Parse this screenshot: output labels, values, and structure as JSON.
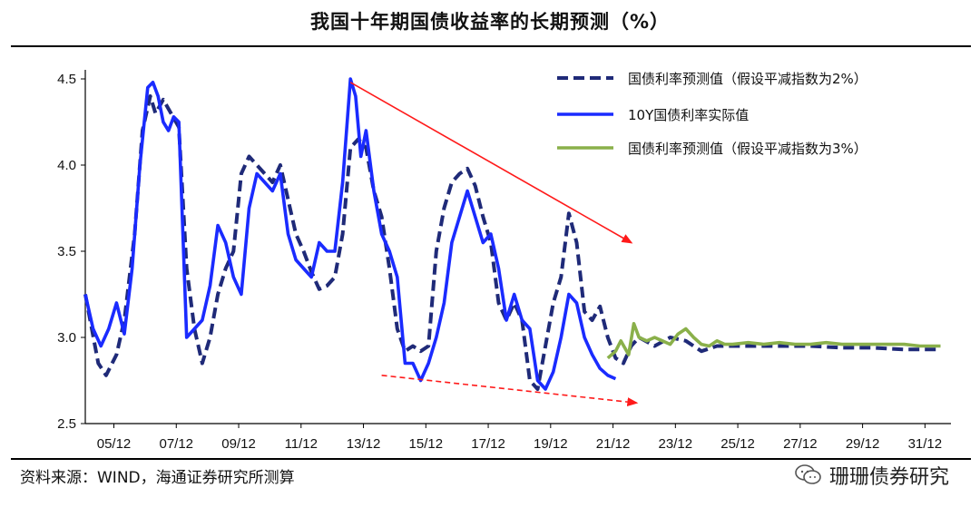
{
  "header": {
    "title": "我国十年期国债收益率的长期预测（%）"
  },
  "footer": {
    "source": "资料来源：WIND，海通证券研究所测算",
    "watermark": "珊珊债券研究"
  },
  "colors": {
    "navy": "#1f2a78",
    "blue": "#1a2bff",
    "green": "#8ab04a",
    "red": "#ff1a1a"
  },
  "chart_data": {
    "type": "line",
    "x_ticks": [
      "05/12",
      "07/12",
      "09/12",
      "11/12",
      "13/12",
      "15/12",
      "17/12",
      "19/12",
      "21/12",
      "23/12",
      "25/12",
      "27/12",
      "29/12",
      "31/12"
    ],
    "y_ticks": [
      "2.5",
      "3.0",
      "3.5",
      "4.0",
      "4.5"
    ],
    "ylim": [
      2.5,
      4.5
    ],
    "xlim": [
      "2005-01",
      "2032-10"
    ],
    "legend": {
      "placement": "top-right"
    },
    "series": [
      {
        "name": "国债利率预测值（假设平减指数为2%）",
        "style": "dashed",
        "color": "#1f2a78",
        "points": [
          [
            "2005-01",
            3.25
          ],
          [
            "2005-06",
            2.85
          ],
          [
            "2005-09",
            2.78
          ],
          [
            "2006-01",
            2.9
          ],
          [
            "2006-04",
            3.1
          ],
          [
            "2006-08",
            3.6
          ],
          [
            "2006-11",
            4.2
          ],
          [
            "2007-02",
            4.4
          ],
          [
            "2007-04",
            4.3
          ],
          [
            "2007-07",
            4.38
          ],
          [
            "2007-10",
            4.3
          ],
          [
            "2008-01",
            4.22
          ],
          [
            "2008-04",
            3.4
          ],
          [
            "2008-07",
            3.05
          ],
          [
            "2008-10",
            2.85
          ],
          [
            "2009-01",
            3.0
          ],
          [
            "2009-04",
            3.25
          ],
          [
            "2009-07",
            3.4
          ],
          [
            "2009-10",
            3.5
          ],
          [
            "2010-01",
            3.95
          ],
          [
            "2010-04",
            4.05
          ],
          [
            "2010-07",
            4.0
          ],
          [
            "2010-10",
            3.95
          ],
          [
            "2011-01",
            3.9
          ],
          [
            "2011-04",
            4.0
          ],
          [
            "2011-07",
            3.8
          ],
          [
            "2011-10",
            3.6
          ],
          [
            "2012-01",
            3.5
          ],
          [
            "2012-04",
            3.38
          ],
          [
            "2012-07",
            3.28
          ],
          [
            "2012-10",
            3.3
          ],
          [
            "2013-01",
            3.35
          ],
          [
            "2013-04",
            3.6
          ],
          [
            "2013-07",
            4.1
          ],
          [
            "2013-10",
            4.15
          ],
          [
            "2014-01",
            4.1
          ],
          [
            "2014-04",
            3.85
          ],
          [
            "2014-07",
            3.7
          ],
          [
            "2014-10",
            3.4
          ],
          [
            "2015-01",
            3.05
          ],
          [
            "2015-04",
            2.92
          ],
          [
            "2015-07",
            2.95
          ],
          [
            "2015-10",
            2.92
          ],
          [
            "2016-01",
            2.95
          ],
          [
            "2016-04",
            3.5
          ],
          [
            "2016-07",
            3.75
          ],
          [
            "2016-10",
            3.9
          ],
          [
            "2017-01",
            3.95
          ],
          [
            "2017-04",
            3.98
          ],
          [
            "2017-07",
            3.88
          ],
          [
            "2017-10",
            3.7
          ],
          [
            "2018-01",
            3.55
          ],
          [
            "2018-04",
            3.2
          ],
          [
            "2018-07",
            3.1
          ],
          [
            "2018-10",
            3.2
          ],
          [
            "2019-01",
            3.1
          ],
          [
            "2019-04",
            2.75
          ],
          [
            "2019-07",
            2.7
          ],
          [
            "2019-10",
            2.95
          ],
          [
            "2020-01",
            3.2
          ],
          [
            "2020-04",
            3.35
          ],
          [
            "2020-07",
            3.72
          ],
          [
            "2020-10",
            3.55
          ],
          [
            "2021-01",
            3.15
          ],
          [
            "2021-04",
            3.1
          ],
          [
            "2021-07",
            3.18
          ],
          [
            "2021-10",
            3.0
          ],
          [
            "2022-01",
            2.88
          ],
          [
            "2022-04",
            2.85
          ],
          [
            "2022-07",
            2.95
          ],
          [
            "2022-10",
            3.0
          ],
          [
            "2023-04",
            2.95
          ],
          [
            "2023-10",
            3.0
          ],
          [
            "2024-04",
            2.98
          ],
          [
            "2024-10",
            2.92
          ],
          [
            "2025-04",
            2.95
          ],
          [
            "2026-04",
            2.95
          ],
          [
            "2027-04",
            2.95
          ],
          [
            "2028-04",
            2.95
          ],
          [
            "2029-04",
            2.94
          ],
          [
            "2030-04",
            2.94
          ],
          [
            "2031-04",
            2.93
          ],
          [
            "2032-06",
            2.93
          ]
        ]
      },
      {
        "name": "10Y国债利率实际值",
        "style": "solid",
        "color": "#1a2bff",
        "points": [
          [
            "2005-01",
            3.25
          ],
          [
            "2005-04",
            3.05
          ],
          [
            "2005-07",
            2.95
          ],
          [
            "2005-10",
            3.05
          ],
          [
            "2006-01",
            3.2
          ],
          [
            "2006-04",
            3.02
          ],
          [
            "2006-07",
            3.4
          ],
          [
            "2006-10",
            4.0
          ],
          [
            "2007-01",
            4.45
          ],
          [
            "2007-03",
            4.48
          ],
          [
            "2007-05",
            4.4
          ],
          [
            "2007-07",
            4.25
          ],
          [
            "2007-09",
            4.2
          ],
          [
            "2007-11",
            4.28
          ],
          [
            "2008-01",
            4.25
          ],
          [
            "2008-04",
            3.0
          ],
          [
            "2008-07",
            3.05
          ],
          [
            "2008-10",
            3.1
          ],
          [
            "2009-01",
            3.3
          ],
          [
            "2009-04",
            3.65
          ],
          [
            "2009-07",
            3.55
          ],
          [
            "2009-10",
            3.35
          ],
          [
            "2010-01",
            3.25
          ],
          [
            "2010-04",
            3.75
          ],
          [
            "2010-07",
            3.95
          ],
          [
            "2010-10",
            3.9
          ],
          [
            "2011-01",
            3.85
          ],
          [
            "2011-04",
            3.95
          ],
          [
            "2011-07",
            3.6
          ],
          [
            "2011-10",
            3.45
          ],
          [
            "2012-01",
            3.4
          ],
          [
            "2012-04",
            3.35
          ],
          [
            "2012-07",
            3.55
          ],
          [
            "2012-10",
            3.5
          ],
          [
            "2013-01",
            3.5
          ],
          [
            "2013-04",
            3.9
          ],
          [
            "2013-07",
            4.5
          ],
          [
            "2013-09",
            4.4
          ],
          [
            "2013-11",
            4.05
          ],
          [
            "2014-01",
            4.2
          ],
          [
            "2014-04",
            3.85
          ],
          [
            "2014-07",
            3.6
          ],
          [
            "2014-10",
            3.5
          ],
          [
            "2015-01",
            3.35
          ],
          [
            "2015-04",
            2.85
          ],
          [
            "2015-07",
            2.85
          ],
          [
            "2015-10",
            2.75
          ],
          [
            "2016-01",
            2.85
          ],
          [
            "2016-04",
            3.0
          ],
          [
            "2016-07",
            3.2
          ],
          [
            "2016-10",
            3.55
          ],
          [
            "2017-01",
            3.7
          ],
          [
            "2017-04",
            3.85
          ],
          [
            "2017-07",
            3.7
          ],
          [
            "2017-10",
            3.55
          ],
          [
            "2018-01",
            3.6
          ],
          [
            "2018-04",
            3.4
          ],
          [
            "2018-07",
            3.1
          ],
          [
            "2018-10",
            3.25
          ],
          [
            "2019-01",
            3.1
          ],
          [
            "2019-04",
            3.05
          ],
          [
            "2019-07",
            2.75
          ],
          [
            "2019-10",
            2.7
          ],
          [
            "2020-01",
            2.8
          ],
          [
            "2020-04",
            3.0
          ],
          [
            "2020-07",
            3.25
          ],
          [
            "2020-10",
            3.2
          ],
          [
            "2021-01",
            3.0
          ],
          [
            "2021-04",
            2.9
          ],
          [
            "2021-07",
            2.82
          ],
          [
            "2021-10",
            2.78
          ],
          [
            "2022-01",
            2.76
          ]
        ]
      },
      {
        "name": "国债利率预测值（假设平减指数为3%）",
        "style": "solid",
        "color": "#8ab04a",
        "points": [
          [
            "2021-10",
            2.88
          ],
          [
            "2022-01",
            2.92
          ],
          [
            "2022-03",
            2.98
          ],
          [
            "2022-06",
            2.9
          ],
          [
            "2022-08",
            3.08
          ],
          [
            "2022-10",
            3.0
          ],
          [
            "2023-01",
            2.98
          ],
          [
            "2023-04",
            3.0
          ],
          [
            "2023-07",
            2.98
          ],
          [
            "2023-10",
            2.96
          ],
          [
            "2024-01",
            3.02
          ],
          [
            "2024-04",
            3.05
          ],
          [
            "2024-07",
            3.0
          ],
          [
            "2024-10",
            2.96
          ],
          [
            "2025-01",
            2.95
          ],
          [
            "2025-04",
            2.98
          ],
          [
            "2025-07",
            2.96
          ],
          [
            "2025-10",
            2.96
          ],
          [
            "2026-04",
            2.97
          ],
          [
            "2026-10",
            2.96
          ],
          [
            "2027-04",
            2.97
          ],
          [
            "2027-10",
            2.96
          ],
          [
            "2028-04",
            2.96
          ],
          [
            "2028-10",
            2.97
          ],
          [
            "2029-04",
            2.96
          ],
          [
            "2029-10",
            2.96
          ],
          [
            "2030-04",
            2.96
          ],
          [
            "2030-10",
            2.96
          ],
          [
            "2031-04",
            2.96
          ],
          [
            "2031-10",
            2.95
          ],
          [
            "2032-06",
            2.95
          ]
        ]
      }
    ],
    "annotations": [
      {
        "type": "arrow",
        "style": "solid",
        "color": "#ff1a1a",
        "from": [
          "2013-07",
          4.48
        ],
        "to": [
          "2022-07",
          3.55
        ]
      },
      {
        "type": "arrow",
        "style": "dashed",
        "color": "#ff1a1a",
        "from": [
          "2014-07",
          2.78
        ],
        "to": [
          "2022-09",
          2.62
        ]
      }
    ]
  }
}
